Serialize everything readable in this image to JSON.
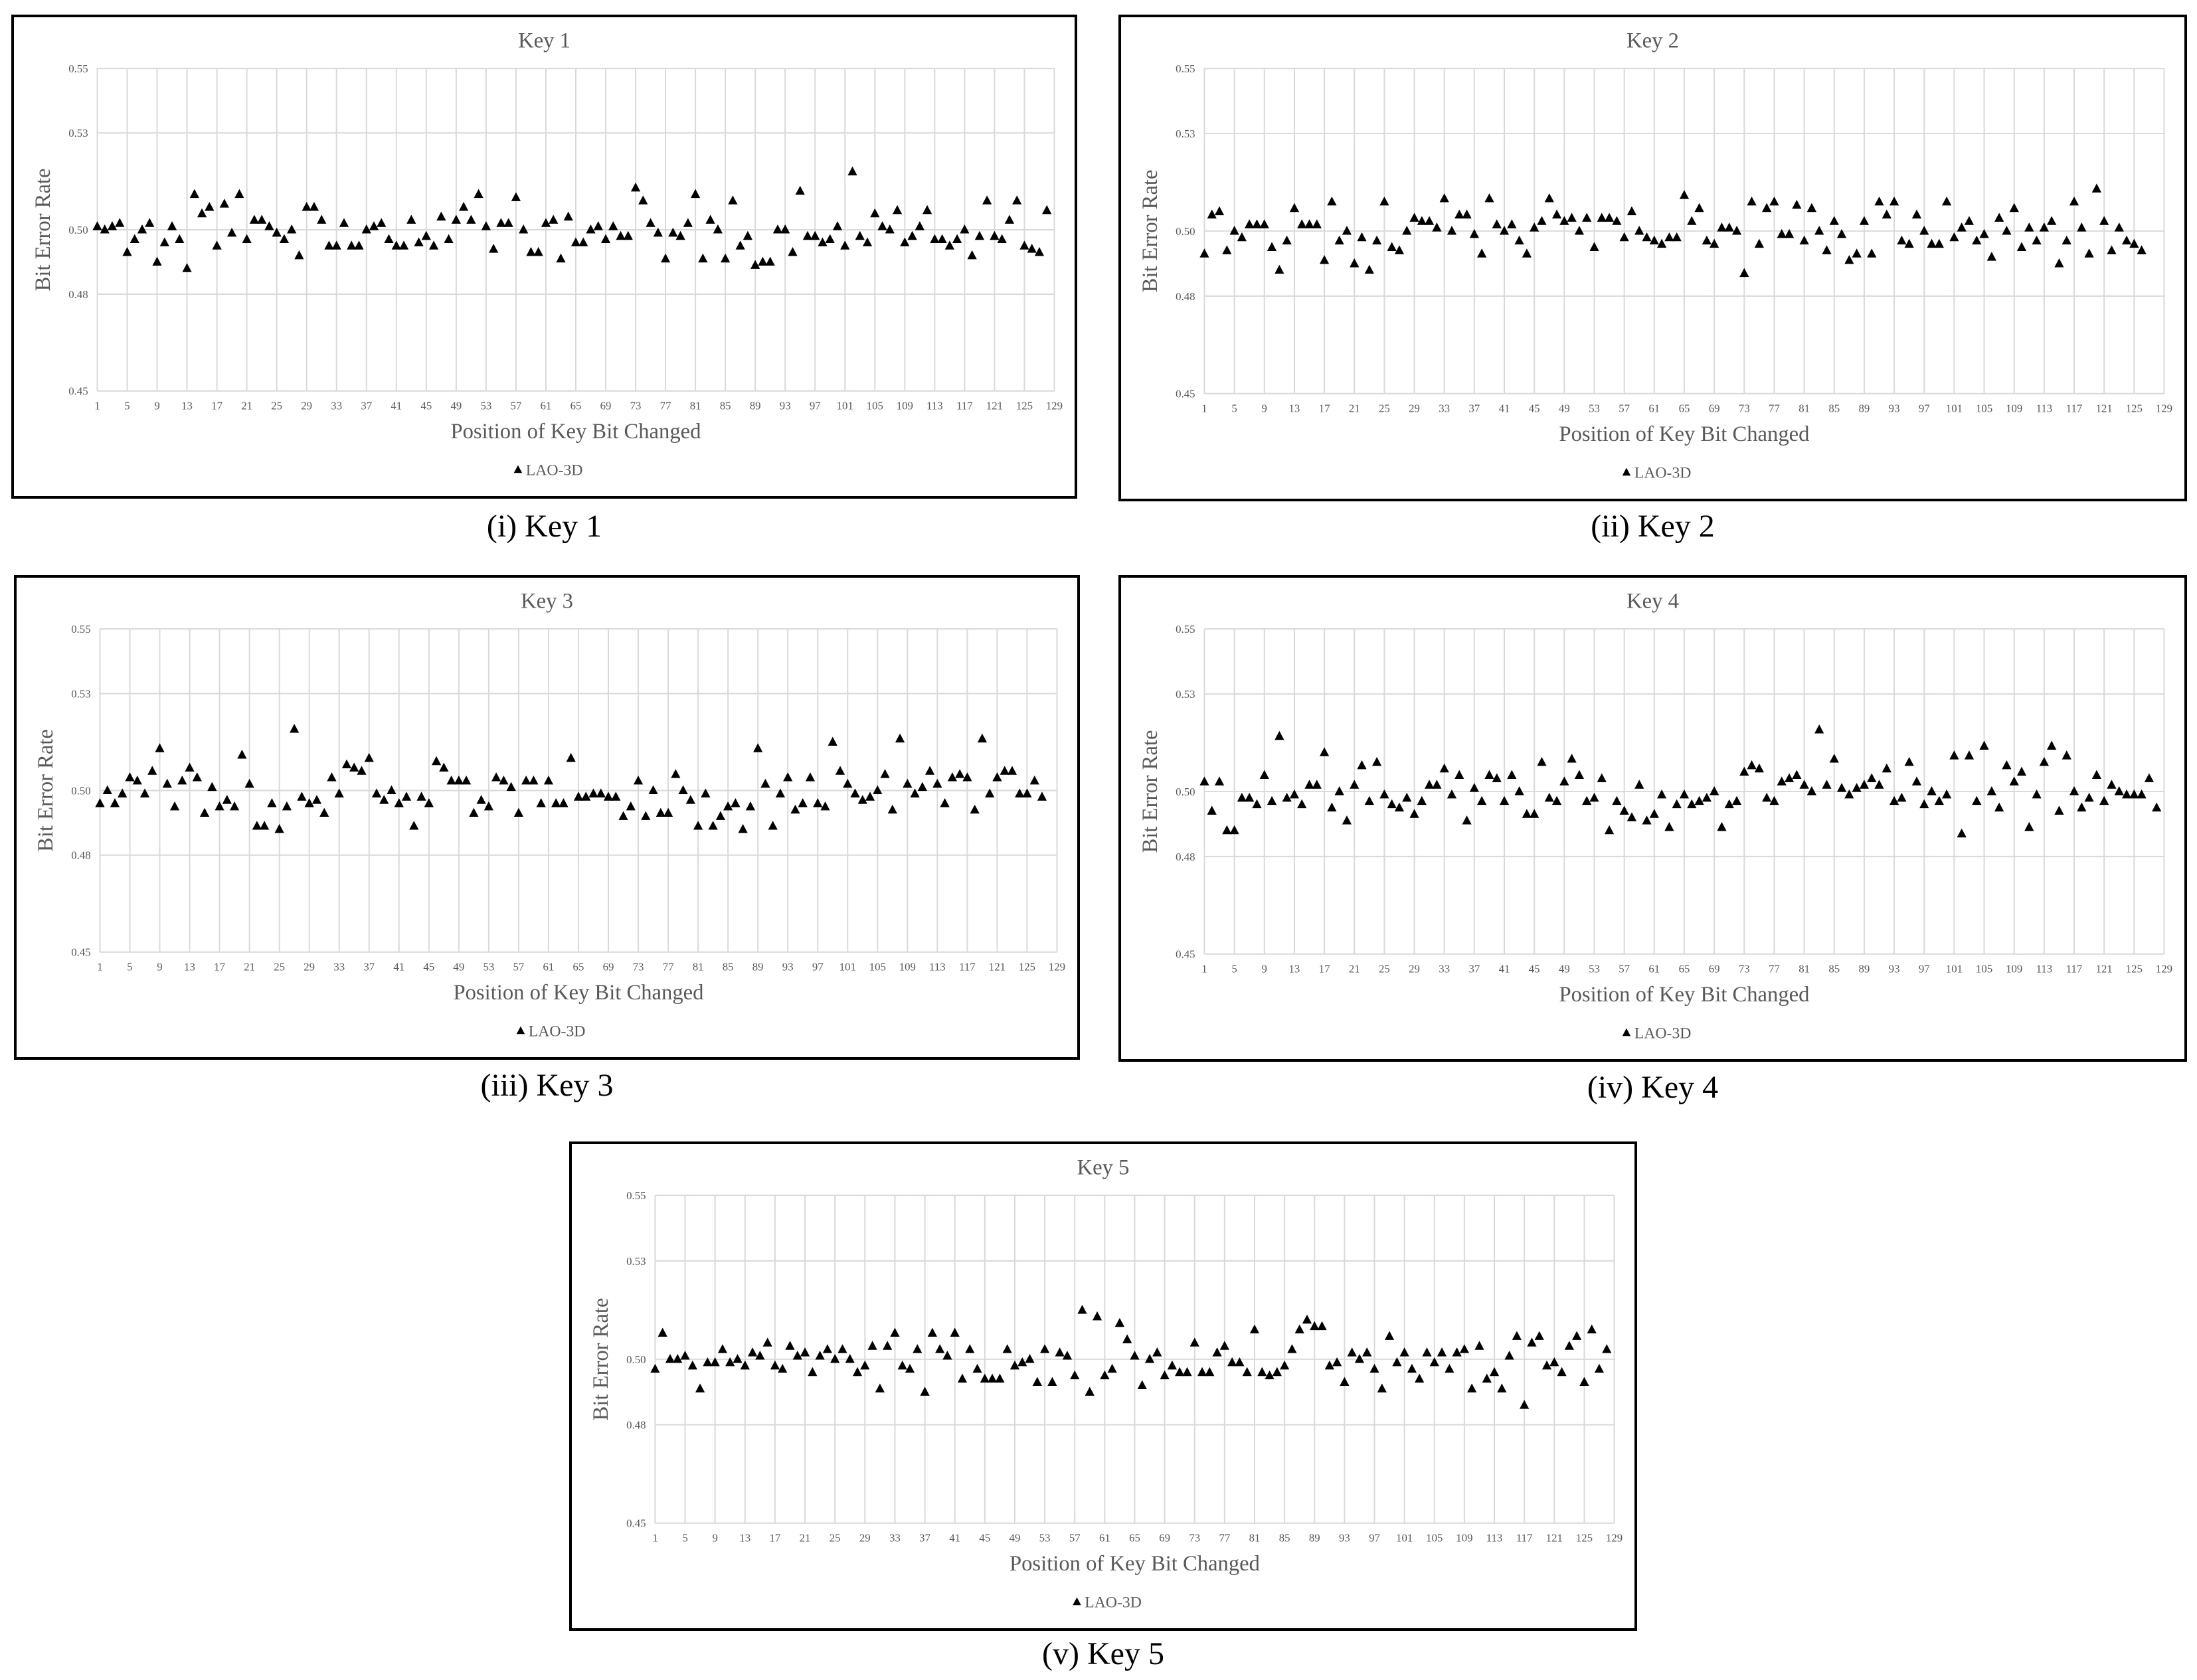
{
  "charts": [
    {
      "caption": "(i) Key 1"
    },
    {
      "caption": "(ii) Key 2"
    },
    {
      "caption": "(iii) Key 3"
    },
    {
      "caption": "(iv) Key 4"
    },
    {
      "caption": "(v) Key 5"
    }
  ],
  "chart_data": [
    {
      "type": "scatter",
      "title": "Key 1",
      "xlabel": "Position of Key Bit Changed",
      "ylabel": "Bit Error Rate",
      "legend": "bottom-center",
      "grid": true,
      "xlim": [
        1,
        129
      ],
      "ylim": [
        0.45,
        0.55
      ],
      "xticks": [
        1,
        5,
        9,
        13,
        17,
        21,
        25,
        29,
        33,
        37,
        41,
        45,
        49,
        53,
        57,
        61,
        65,
        69,
        73,
        77,
        81,
        85,
        89,
        93,
        97,
        101,
        105,
        109,
        113,
        117,
        121,
        125,
        129
      ],
      "yticks": [
        "0.45",
        "0.48",
        "0.50",
        "0.53",
        "0.55"
      ],
      "series": [
        {
          "name": "LAO-3D",
          "marker": "triangle",
          "values": [
            0.501,
            0.5,
            0.501,
            0.502,
            0.493,
            0.497,
            0.5,
            0.502,
            0.49,
            0.496,
            0.501,
            0.497,
            0.488,
            0.511,
            0.505,
            0.507,
            0.495,
            0.508,
            0.499,
            0.511,
            0.497,
            0.503,
            0.503,
            0.501,
            0.499,
            0.497,
            0.5,
            0.492,
            0.507,
            0.507,
            0.503,
            0.495,
            0.495,
            0.502,
            0.495,
            0.495,
            0.5,
            0.501,
            0.502,
            0.497,
            0.495,
            0.495,
            0.503,
            0.496,
            0.498,
            0.495,
            0.504,
            0.497,
            0.503,
            0.507,
            0.503,
            0.511,
            0.501,
            0.494,
            0.502,
            0.502,
            0.51,
            0.5,
            0.493,
            0.493,
            0.502,
            0.503,
            0.491,
            0.504,
            0.496,
            0.496,
            0.5,
            0.501,
            0.497,
            0.501,
            0.498,
            0.498,
            0.513,
            0.509,
            0.502,
            0.499,
            0.491,
            0.499,
            0.498,
            0.502,
            0.511,
            0.491,
            0.503,
            0.5,
            0.491,
            0.509,
            0.495,
            0.498,
            0.489,
            0.49,
            0.49,
            0.5,
            0.5,
            0.493,
            0.512,
            0.498,
            0.498,
            0.496,
            0.497,
            0.501,
            0.495,
            0.518,
            0.498,
            0.496,
            0.505,
            0.501,
            0.5,
            0.506,
            0.496,
            0.498,
            0.501,
            0.506,
            0.497,
            0.497,
            0.495,
            0.497,
            0.5,
            0.492,
            0.498,
            0.509,
            0.498,
            0.497,
            0.503,
            0.509,
            0.495,
            0.494,
            0.493,
            0.506
          ]
        }
      ]
    },
    {
      "type": "scatter",
      "title": "Key 2",
      "xlabel": "Position of Key Bit Changed",
      "ylabel": "Bit Error Rate",
      "legend": "bottom-center",
      "grid": true,
      "xlim": [
        1,
        129
      ],
      "ylim": [
        0.45,
        0.55
      ],
      "xticks": [
        1,
        5,
        9,
        13,
        17,
        21,
        25,
        29,
        33,
        37,
        41,
        45,
        49,
        53,
        57,
        61,
        65,
        69,
        73,
        77,
        81,
        85,
        89,
        93,
        97,
        101,
        105,
        109,
        113,
        117,
        121,
        125,
        129
      ],
      "yticks": [
        "0.45",
        "0.48",
        "0.50",
        "0.53",
        "0.55"
      ],
      "series": [
        {
          "name": "LAO-3D",
          "marker": "triangle",
          "values": [
            0.493,
            0.505,
            0.506,
            0.494,
            0.5,
            0.498,
            0.502,
            0.502,
            0.502,
            0.495,
            0.488,
            0.497,
            0.507,
            0.502,
            0.502,
            0.502,
            0.491,
            0.509,
            0.497,
            0.5,
            0.49,
            0.498,
            0.488,
            0.497,
            0.509,
            0.495,
            0.494,
            0.5,
            0.504,
            0.503,
            0.503,
            0.501,
            0.51,
            0.5,
            0.505,
            0.505,
            0.499,
            0.493,
            0.51,
            0.502,
            0.5,
            0.502,
            0.497,
            0.493,
            0.501,
            0.503,
            0.51,
            0.505,
            0.503,
            0.504,
            0.5,
            0.504,
            0.495,
            0.504,
            0.504,
            0.503,
            0.498,
            0.506,
            0.5,
            0.498,
            0.497,
            0.496,
            0.498,
            0.498,
            0.511,
            0.503,
            0.507,
            0.497,
            0.496,
            0.501,
            0.501,
            0.5,
            0.487,
            0.509,
            0.496,
            0.507,
            0.509,
            0.499,
            0.499,
            0.508,
            0.497,
            0.507,
            0.5,
            0.494,
            0.503,
            0.499,
            0.491,
            0.493,
            0.503,
            0.493,
            0.509,
            0.505,
            0.509,
            0.497,
            0.496,
            0.505,
            0.5,
            0.496,
            0.496,
            0.509,
            0.498,
            0.501,
            0.503,
            0.497,
            0.499,
            0.492,
            0.504,
            0.5,
            0.507,
            0.495,
            0.501,
            0.497,
            0.501,
            0.503,
            0.49,
            0.497,
            0.509,
            0.501,
            0.493,
            0.513,
            0.503,
            0.494,
            0.501,
            0.497,
            0.496,
            0.494
          ]
        }
      ]
    },
    {
      "type": "scatter",
      "title": "Key 3",
      "xlabel": "Position of Key Bit Changed",
      "ylabel": "Bit Error Rate",
      "legend": "bottom-center",
      "grid": true,
      "xlim": [
        1,
        129
      ],
      "ylim": [
        0.45,
        0.55
      ],
      "xticks": [
        1,
        5,
        9,
        13,
        17,
        21,
        25,
        29,
        33,
        37,
        41,
        45,
        49,
        53,
        57,
        61,
        65,
        69,
        73,
        77,
        81,
        85,
        89,
        93,
        97,
        101,
        105,
        109,
        113,
        117,
        121,
        125,
        129
      ],
      "yticks": [
        "0.45",
        "0.48",
        "0.50",
        "0.53",
        "0.55"
      ],
      "series": [
        {
          "name": "LAO-3D",
          "marker": "triangle",
          "values": [
            0.496,
            0.5,
            0.496,
            0.499,
            0.504,
            0.503,
            0.499,
            0.506,
            0.513,
            0.502,
            0.495,
            0.503,
            0.507,
            0.504,
            0.493,
            0.501,
            0.495,
            0.497,
            0.495,
            0.511,
            0.502,
            0.489,
            0.489,
            0.496,
            0.488,
            0.495,
            0.519,
            0.498,
            0.496,
            0.497,
            0.493,
            0.504,
            0.499,
            0.508,
            0.507,
            0.506,
            0.51,
            0.499,
            0.497,
            0.5,
            0.496,
            0.498,
            0.489,
            0.498,
            0.496,
            0.509,
            0.507,
            0.503,
            0.503,
            0.503,
            0.493,
            0.497,
            0.495,
            0.504,
            0.503,
            0.501,
            0.493,
            0.503,
            0.503,
            0.496,
            0.503,
            0.496,
            0.496,
            0.51,
            0.498,
            0.498,
            0.499,
            0.499,
            0.498,
            0.498,
            0.492,
            0.495,
            0.503,
            0.492,
            0.5,
            0.493,
            0.493,
            0.505,
            0.5,
            0.497,
            0.489,
            0.499,
            0.489,
            0.492,
            0.495,
            0.496,
            0.488,
            0.495,
            0.513,
            0.502,
            0.489,
            0.499,
            0.504,
            0.494,
            0.496,
            0.504,
            0.496,
            0.495,
            0.515,
            0.506,
            0.502,
            0.499,
            0.497,
            0.498,
            0.5,
            0.505,
            0.494,
            0.516,
            0.502,
            0.499,
            0.501,
            0.506,
            0.502,
            0.496,
            0.504,
            0.505,
            0.504,
            0.494,
            0.516,
            0.499,
            0.504,
            0.506,
            0.506,
            0.499,
            0.499,
            0.503,
            0.498
          ]
        }
      ]
    },
    {
      "type": "scatter",
      "title": "Key 4",
      "xlabel": "Position of Key Bit Changed",
      "ylabel": "Bit Error Rate",
      "legend": "bottom-center",
      "grid": true,
      "xlim": [
        1,
        129
      ],
      "ylim": [
        0.45,
        0.55
      ],
      "xticks": [
        1,
        5,
        9,
        13,
        17,
        21,
        25,
        29,
        33,
        37,
        41,
        45,
        49,
        53,
        57,
        61,
        65,
        69,
        73,
        77,
        81,
        85,
        89,
        93,
        97,
        101,
        105,
        109,
        113,
        117,
        121,
        125,
        129
      ],
      "yticks": [
        "0.45",
        "0.48",
        "0.50",
        "0.53",
        "0.55"
      ],
      "series": [
        {
          "name": "LAO-3D",
          "marker": "triangle",
          "values": [
            0.503,
            0.494,
            0.503,
            0.488,
            0.488,
            0.498,
            0.498,
            0.496,
            0.505,
            0.497,
            0.517,
            0.498,
            0.499,
            0.496,
            0.502,
            0.502,
            0.512,
            0.495,
            0.5,
            0.491,
            0.502,
            0.508,
            0.497,
            0.509,
            0.499,
            0.496,
            0.495,
            0.498,
            0.493,
            0.497,
            0.502,
            0.502,
            0.507,
            0.499,
            0.505,
            0.491,
            0.501,
            0.497,
            0.505,
            0.504,
            0.497,
            0.505,
            0.5,
            0.493,
            0.493,
            0.509,
            0.498,
            0.497,
            0.503,
            0.51,
            0.505,
            0.497,
            0.498,
            0.504,
            0.488,
            0.497,
            0.494,
            0.492,
            0.502,
            0.491,
            0.493,
            0.499,
            0.489,
            0.496,
            0.499,
            0.496,
            0.497,
            0.498,
            0.5,
            0.489,
            0.496,
            0.497,
            0.506,
            0.508,
            0.507,
            0.498,
            0.497,
            0.503,
            0.504,
            0.505,
            0.502,
            0.5,
            0.519,
            0.502,
            0.51,
            0.501,
            0.499,
            0.501,
            0.502,
            0.504,
            0.502,
            0.507,
            0.497,
            0.498,
            0.509,
            0.503,
            0.496,
            0.5,
            0.497,
            0.499,
            0.511,
            0.487,
            0.511,
            0.497,
            0.514,
            0.5,
            0.495,
            0.508,
            0.503,
            0.506,
            0.489,
            0.499,
            0.509,
            0.514,
            0.494,
            0.511,
            0.5,
            0.495,
            0.498,
            0.505,
            0.497,
            0.502,
            0.5,
            0.499,
            0.499,
            0.499,
            0.504,
            0.495
          ]
        }
      ]
    },
    {
      "type": "scatter",
      "title": "Key 5",
      "xlabel": "Position of Key Bit Changed",
      "ylabel": "Bit Error Rate",
      "legend": "bottom-center",
      "grid": true,
      "xlim": [
        1,
        129
      ],
      "ylim": [
        0.45,
        0.55
      ],
      "xticks": [
        1,
        5,
        9,
        13,
        17,
        21,
        25,
        29,
        33,
        37,
        41,
        45,
        49,
        53,
        57,
        61,
        65,
        69,
        73,
        77,
        81,
        85,
        89,
        93,
        97,
        101,
        105,
        109,
        113,
        117,
        121,
        125,
        129
      ],
      "yticks": [
        "0.45",
        "0.48",
        "0.50",
        "0.53",
        "0.55"
      ],
      "series": [
        {
          "name": "LAO-3D",
          "marker": "triangle",
          "values": [
            0.497,
            0.508,
            0.5,
            0.5,
            0.501,
            0.498,
            0.491,
            0.499,
            0.499,
            0.503,
            0.499,
            0.5,
            0.498,
            0.502,
            0.501,
            0.505,
            0.498,
            0.497,
            0.504,
            0.501,
            0.502,
            0.496,
            0.501,
            0.503,
            0.5,
            0.503,
            0.5,
            0.496,
            0.498,
            0.504,
            0.491,
            0.504,
            0.508,
            0.498,
            0.497,
            0.503,
            0.49,
            0.508,
            0.503,
            0.501,
            0.508,
            0.494,
            0.503,
            0.497,
            0.494,
            0.494,
            0.494,
            0.503,
            0.498,
            0.499,
            0.5,
            0.493,
            0.503,
            0.493,
            0.502,
            0.501,
            0.495,
            0.515,
            0.49,
            0.513,
            0.495,
            0.497,
            0.511,
            0.506,
            0.501,
            0.492,
            0.5,
            0.502,
            0.495,
            0.498,
            0.496,
            0.496,
            0.505,
            0.496,
            0.496,
            0.502,
            0.504,
            0.499,
            0.499,
            0.496,
            0.509,
            0.496,
            0.495,
            0.496,
            0.498,
            0.503,
            0.509,
            0.512,
            0.51,
            0.51,
            0.498,
            0.499,
            0.493,
            0.502,
            0.5,
            0.502,
            0.497,
            0.491,
            0.507,
            0.499,
            0.502,
            0.497,
            0.494,
            0.502,
            0.499,
            0.502,
            0.497,
            0.502,
            0.503,
            0.491,
            0.504,
            0.494,
            0.496,
            0.491,
            0.501,
            0.507,
            0.486,
            0.505,
            0.507,
            0.498,
            0.499,
            0.496,
            0.504,
            0.507,
            0.493,
            0.509,
            0.497,
            0.503
          ]
        }
      ]
    }
  ]
}
